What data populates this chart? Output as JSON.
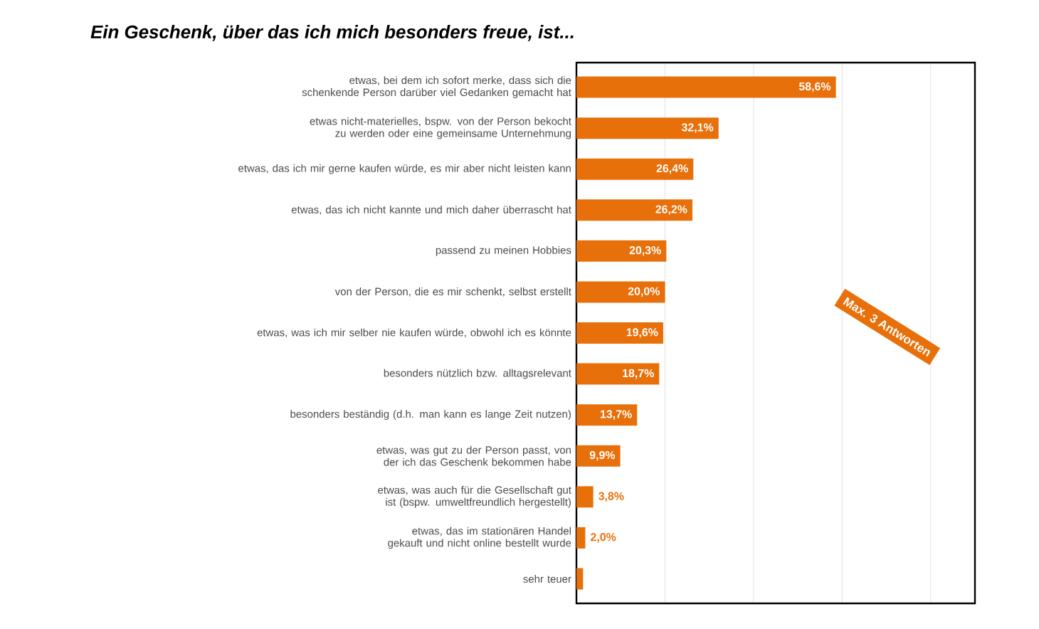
{
  "chart_data": {
    "type": "bar",
    "orientation": "horizontal",
    "title": "Ein Geschenk, über das ich mich besonders freue, ist...",
    "categories": [
      "etwas, bei dem ich sofort merke, dass sich die schenkende Person darüber viel Gedanken gemacht hat",
      "etwas nicht-materielles, bspw. von der Person bekocht zu werden oder eine gemeinsame Unternehmung",
      "etwas, das ich mir gerne kaufen würde, es mir aber nicht leisten kann",
      "etwas, das ich nicht kannte und mich daher überrascht hat",
      "passend zu meinen Hobbies",
      "von der Person, die es mir schenkt, selbst erstellt",
      "etwas, was ich mir selber nie kaufen würde, obwohl ich es könnte",
      "besonders nützlich bzw. alltagsrelevant",
      "besonders beständig (d.h. man kann es lange Zeit nutzen)",
      "etwas, was gut zu der Person passt, von der ich das Geschenk bekommen habe",
      "etwas, was auch für die Gesellschaft gut ist (bspw. umweltfreundlich hergestellt)",
      "etwas, das im stationären Handel gekauft und nicht online bestellt wurde",
      "sehr teuer"
    ],
    "values": [
      58.6,
      32.1,
      26.4,
      26.2,
      20.3,
      20.0,
      19.6,
      18.7,
      13.7,
      9.9,
      3.8,
      2.0,
      1.5
    ],
    "value_labels": [
      "58,6%",
      "32,1%",
      "26,4%",
      "26,2%",
      "20,3%",
      "20,0%",
      "19,6%",
      "18,7%",
      "13,7%",
      "9,9%",
      "3,8%",
      "2,0%",
      null
    ],
    "color": "#e8700a",
    "xlim": [
      0,
      90
    ],
    "xticks": [
      {
        "value": 0,
        "label": null
      },
      {
        "value": 20,
        "label": null
      },
      {
        "value": 40,
        "label": null
      },
      {
        "value": 60,
        "label": null
      },
      {
        "value": 80,
        "label": null
      }
    ],
    "grid": "x",
    "tick_labels": "y",
    "annotations": [
      "Max. 3 Antworten"
    ]
  }
}
